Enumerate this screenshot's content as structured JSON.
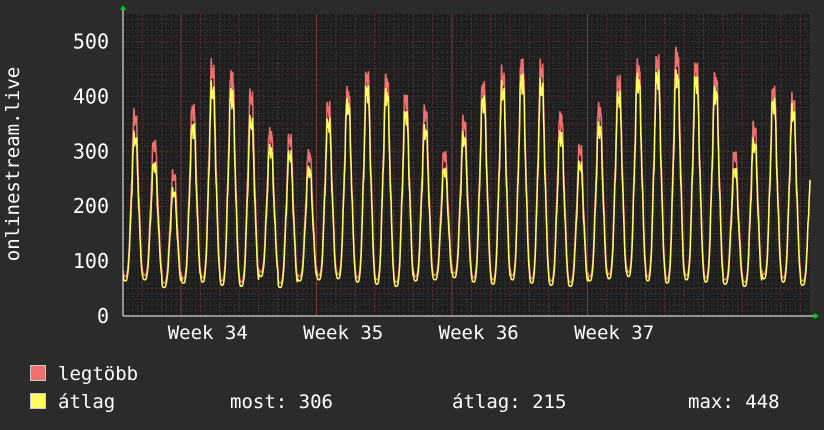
{
  "chart_data": {
    "type": "line",
    "ylabel": "onlinestream.live",
    "ylim": [
      0,
      550
    ],
    "yticks": [
      0,
      100,
      200,
      300,
      400,
      500
    ],
    "x_range_days": [
      0,
      35.5
    ],
    "grid": true,
    "week_ticks": [
      {
        "label": "Week 34",
        "day": 5
      },
      {
        "label": "Week 35",
        "day": 12
      },
      {
        "label": "Week 36",
        "day": 19
      },
      {
        "label": "Week 37",
        "day": 26
      }
    ],
    "colors": {
      "max": "#f07070",
      "avg": "#ffff60",
      "grid": "#5a3030",
      "axis": "#ffffff",
      "arrow": "#00cc00"
    },
    "series": [
      {
        "name": "legtöbb",
        "daily_min": [
          72,
          74,
          60,
          68,
          70,
          64,
          62,
          80,
          60,
          72,
          74,
          76,
          70,
          66,
          62,
          72,
          74,
          78,
          70,
          66,
          74,
          68,
          64,
          62,
          72,
          76,
          80,
          72,
          68,
          74,
          70,
          66,
          62,
          76,
          70,
          64
        ],
        "daily_max": [
          372,
          320,
          262,
          385,
          460,
          445,
          408,
          340,
          330,
          300,
          390,
          414,
          446,
          438,
          405,
          380,
          300,
          360,
          426,
          448,
          468,
          460,
          370,
          310,
          385,
          437,
          463,
          475,
          486,
          463,
          440,
          300,
          350,
          418,
          400,
          300
        ]
      },
      {
        "name": "átlag",
        "daily_min": [
          64,
          66,
          52,
          60,
          62,
          56,
          54,
          72,
          52,
          64,
          66,
          68,
          62,
          58,
          54,
          64,
          66,
          70,
          62,
          58,
          66,
          60,
          56,
          54,
          64,
          68,
          72,
          64,
          60,
          66,
          62,
          58,
          54,
          68,
          62,
          56
        ],
        "daily_max": [
          332,
          280,
          230,
          350,
          420,
          412,
          360,
          310,
          300,
          270,
          360,
          392,
          420,
          412,
          375,
          345,
          270,
          330,
          400,
          420,
          440,
          425,
          336,
          280,
          350,
          408,
          437,
          446,
          445,
          438,
          415,
          270,
          320,
          395,
          380,
          306
        ]
      }
    ]
  },
  "legend": {
    "max_label": "legtöbb",
    "avg_label": "átlag",
    "now_text": "most: 306",
    "avg_text": "átlag: 215",
    "max_text": "max: 448"
  }
}
